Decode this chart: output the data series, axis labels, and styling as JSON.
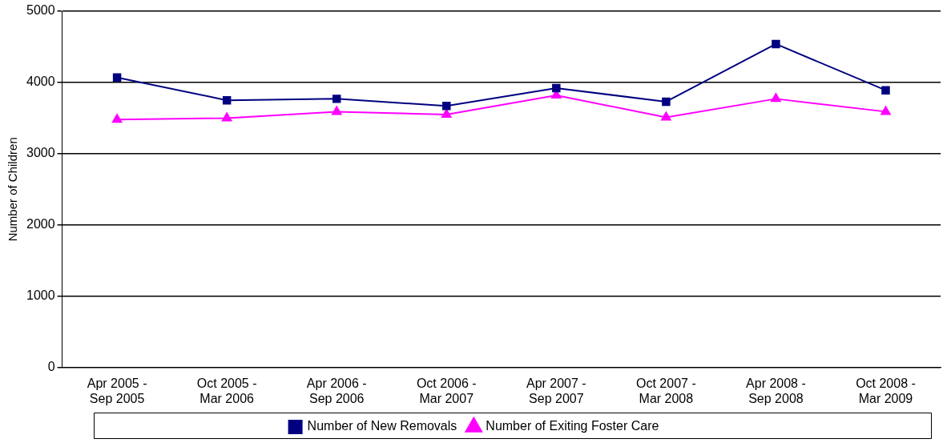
{
  "chart_data": {
    "type": "line",
    "ylabel": "Number of Children",
    "categories": [
      "Apr 2005 - Sep 2005",
      "Oct 2005 - Mar 2006",
      "Apr 2006 - Sep 2006",
      "Oct 2006 - Mar 2007",
      "Apr 2007 - Sep 2007",
      "Oct 2007 - Mar 2008",
      "Apr 2008 - Sep 2008",
      "Oct 2008 - Mar 2009"
    ],
    "series": [
      {
        "name": "Number of New Removals",
        "color": "#000080",
        "marker": "square",
        "values": [
          4070,
          3750,
          3770,
          3670,
          3920,
          3730,
          4540,
          3890
        ]
      },
      {
        "name": "Number of Exiting Foster Care",
        "color": "#ff00ff",
        "marker": "triangle",
        "values": [
          3480,
          3500,
          3590,
          3550,
          3820,
          3510,
          3770,
          3590
        ]
      }
    ],
    "ylim": [
      0,
      5000
    ],
    "yticks": [
      0,
      1000,
      2000,
      3000,
      4000,
      5000
    ],
    "grid": "y",
    "legend": "bottom"
  }
}
